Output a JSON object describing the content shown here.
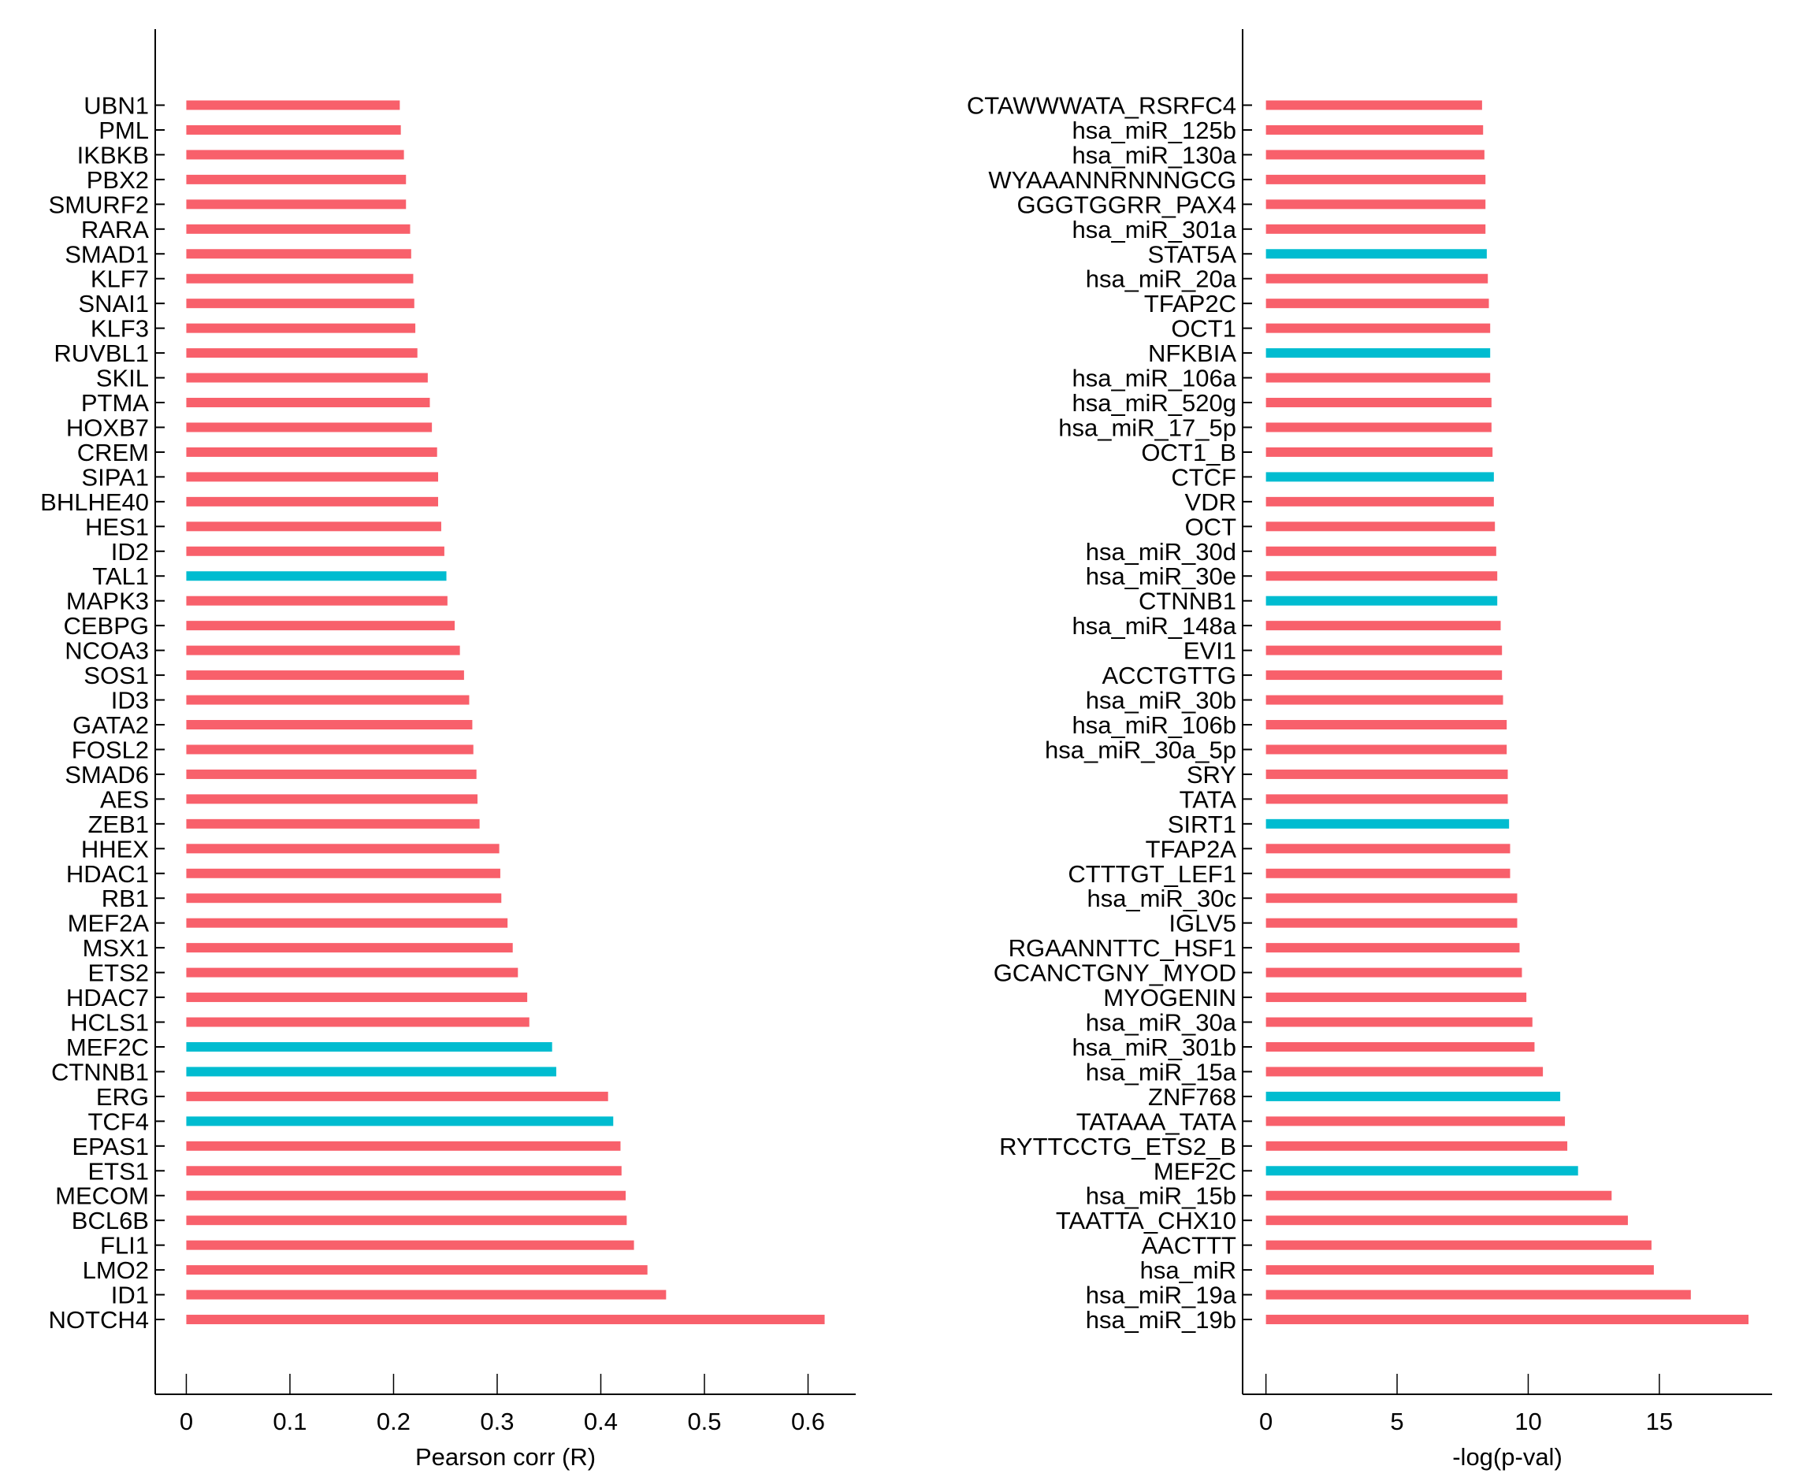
{
  "colors": {
    "positive": "#F8606B",
    "highlight": "#00BCD0"
  },
  "chart_data": [
    {
      "type": "bar",
      "orientation": "horizontal",
      "xlabel": "Pearson corr (R)",
      "xlim": [
        -0.03,
        0.646
      ],
      "xticks": [
        "0",
        "0.1",
        "0.2",
        "0.3",
        "0.4",
        "0.5",
        "0.6"
      ],
      "xtick_values": [
        0,
        0.1,
        0.2,
        0.3,
        0.4,
        0.5,
        0.6
      ],
      "categories": [
        "UBN1",
        "PML",
        "IKBKB",
        "PBX2",
        "SMURF2",
        "RARA",
        "SMAD1",
        "KLF7",
        "SNAI1",
        "KLF3",
        "RUVBL1",
        "SKIL",
        "PTMA",
        "HOXB7",
        "CREM",
        "SIPA1",
        "BHLHE40",
        "HES1",
        "ID2",
        "TAL1",
        "MAPK3",
        "CEBPG",
        "NCOA3",
        "SOS1",
        "ID3",
        "GATA2",
        "FOSL2",
        "SMAD6",
        "AES",
        "ZEB1",
        "HHEX",
        "HDAC1",
        "RB1",
        "MEF2A",
        "MSX1",
        "ETS2",
        "HDAC7",
        "HCLS1",
        "MEF2C",
        "CTNNB1",
        "ERG",
        "TCF4",
        "EPAS1",
        "ETS1",
        "MECOM",
        "BCL6B",
        "FLI1",
        "LMO2",
        "ID1",
        "NOTCH4"
      ],
      "values": [
        0.206,
        0.207,
        0.21,
        0.212,
        0.212,
        0.216,
        0.217,
        0.219,
        0.22,
        0.221,
        0.223,
        0.233,
        0.235,
        0.237,
        0.242,
        0.243,
        0.243,
        0.246,
        0.249,
        0.251,
        0.252,
        0.259,
        0.264,
        0.268,
        0.273,
        0.276,
        0.277,
        0.28,
        0.281,
        0.283,
        0.302,
        0.303,
        0.304,
        0.31,
        0.315,
        0.32,
        0.329,
        0.331,
        0.353,
        0.357,
        0.407,
        0.412,
        0.419,
        0.42,
        0.424,
        0.425,
        0.432,
        0.445,
        0.463,
        0.616
      ],
      "highlighted": [
        "TAL1",
        "MEF2C",
        "CTNNB1",
        "TCF4"
      ]
    },
    {
      "type": "bar",
      "orientation": "horizontal",
      "xlabel": "-log(p-val)",
      "xlim": [
        -0.89,
        19.3
      ],
      "xticks": [
        "0",
        "5",
        "10",
        "15"
      ],
      "xtick_values": [
        0,
        5,
        10,
        15
      ],
      "categories": [
        "CTAWWWATA_RSRFC4",
        "hsa_miR_125b",
        "hsa_miR_130a",
        "WYAAANNRNNNGCG",
        "GGGTGGRR_PAX4",
        "hsa_miR_301a",
        "STAT5A",
        "hsa_miR_20a",
        "TFAP2C",
        "OCT1",
        "NFKBIA",
        "hsa_miR_106a",
        "hsa_miR_520g",
        "hsa_miR_17_5p",
        "OCT1_B",
        "CTCF",
        "VDR",
        "OCT",
        "hsa_miR_30d",
        "hsa_miR_30e",
        "CTNNB1",
        "hsa_miR_148a",
        "EVI1",
        "ACCTGTTG",
        "hsa_miR_30b",
        "hsa_miR_106b",
        "hsa_miR_30a_5p",
        "SRY",
        "TATA",
        "SIRT1",
        "TFAP2A",
        "CTTTGT_LEF1",
        "hsa_miR_30c",
        "IGLV5",
        "RGAANNTTC_HSF1",
        "GCANCTGNY_MYOD",
        "MYOGENIN",
        "hsa_miR_30a",
        "hsa_miR_301b",
        "hsa_miR_15a",
        "ZNF768",
        "TATAAA_TATA",
        "RYTTCCTG_ETS2_B",
        "MEF2C",
        "hsa_miR_15b",
        "TAATTA_CHX10",
        "AACTTT",
        "hsa_miR",
        "hsa_miR_19a",
        "hsa_miR_19b"
      ],
      "values": [
        8.24,
        8.28,
        8.33,
        8.37,
        8.37,
        8.37,
        8.42,
        8.46,
        8.5,
        8.55,
        8.55,
        8.55,
        8.6,
        8.6,
        8.64,
        8.69,
        8.69,
        8.73,
        8.78,
        8.82,
        8.82,
        8.95,
        9.0,
        9.0,
        9.04,
        9.18,
        9.18,
        9.22,
        9.22,
        9.27,
        9.31,
        9.31,
        9.58,
        9.58,
        9.67,
        9.76,
        9.93,
        10.16,
        10.24,
        10.56,
        11.22,
        11.4,
        11.49,
        11.9,
        13.18,
        13.8,
        14.7,
        14.79,
        16.2,
        18.4
      ],
      "highlighted": [
        "STAT5A",
        "NFKBIA",
        "CTCF",
        "CTNNB1",
        "SIRT1",
        "ZNF768",
        "MEF2C"
      ]
    }
  ]
}
